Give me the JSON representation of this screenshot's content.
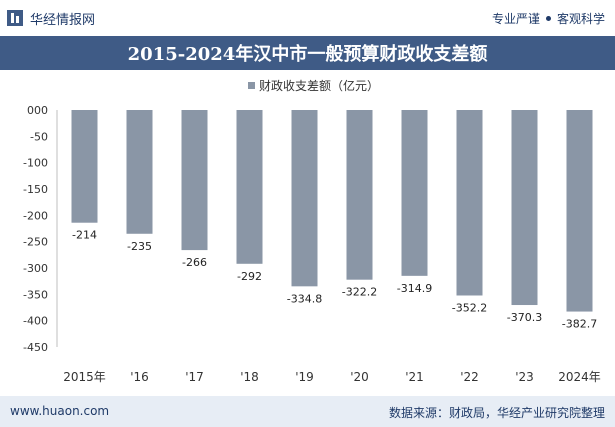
{
  "brand": {
    "name": "华经情报网",
    "tags": [
      "专业严谨",
      "客观科学"
    ]
  },
  "colors": {
    "title_bg": "#3f5b86",
    "bar": "#8a96a6",
    "accent": "#1f3a68",
    "footer_bg": "#e7edf5"
  },
  "chart_data": {
    "type": "bar",
    "title": "2015-2024年汉中市一般预算财政收支差额",
    "categories": [
      "2015年",
      "'16",
      "'17",
      "'18",
      "'19",
      "'20",
      "'21",
      "'22",
      "'23",
      "2024年"
    ],
    "series": [
      {
        "name": "财政收支差额（亿元）",
        "values": [
          -214,
          -235,
          -266,
          -292,
          -334.8,
          -322.2,
          -314.9,
          -352.2,
          -370.3,
          -382.7
        ]
      }
    ],
    "value_labels": [
      "-214",
      "-235",
      "-266",
      "-292",
      "-334.8",
      "-322.2",
      "-314.9",
      "-352.2",
      "-370.3",
      "-382.7"
    ],
    "ylim": [
      -450,
      0
    ],
    "yticks": [
      0,
      -50,
      -100,
      -150,
      -200,
      -250,
      -300,
      -350,
      -400,
      -450
    ],
    "ytick_labels": [
      "000",
      "-50",
      "-100",
      "-150",
      "-200",
      "-250",
      "-300",
      "-350",
      "-400",
      "-450"
    ],
    "legend": "top-center",
    "grid": false
  },
  "footer": {
    "website": "www.huaon.com",
    "source": "数据来源：财政局，华经产业研究院整理"
  }
}
